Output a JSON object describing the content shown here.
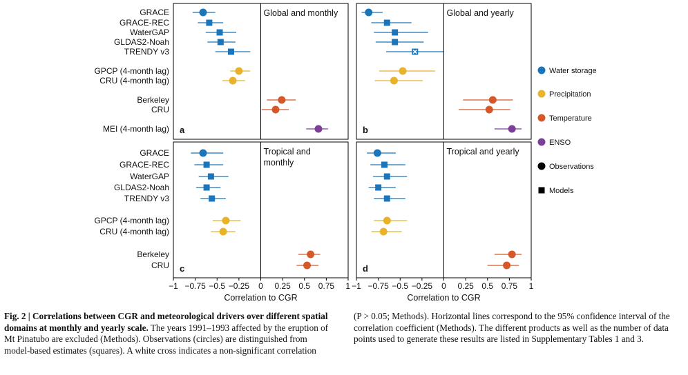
{
  "colors": {
    "water": "#1a75bb",
    "precip": "#e8b22a",
    "temp": "#d4582a",
    "enso": "#7b3f98"
  },
  "chart_data": [
    {
      "panel": "a",
      "type": "scatter",
      "title": [
        "Global and monthly"
      ],
      "xlabel": "Correlation to CGR",
      "xlim": [
        -1,
        1
      ],
      "ticks": [
        "−1",
        "−0.75",
        "−0.5",
        "−0.25",
        "0",
        "0.25",
        "0.5",
        "0.75",
        "1"
      ],
      "items": [
        {
          "label": "GRACE",
          "group": "water",
          "kind": "observation",
          "value": -0.66,
          "ci": [
            -0.78,
            -0.52
          ]
        },
        {
          "label": "GRACE-REC",
          "group": "water",
          "kind": "model",
          "value": -0.59,
          "ci": [
            -0.72,
            -0.43
          ]
        },
        {
          "label": "WaterGAP",
          "group": "water",
          "kind": "model",
          "value": -0.47,
          "ci": [
            -0.63,
            -0.28
          ]
        },
        {
          "label": "GLDAS2-Noah",
          "group": "water",
          "kind": "model",
          "value": -0.46,
          "ci": [
            -0.61,
            -0.29
          ]
        },
        {
          "label": "TRENDY v3",
          "group": "water",
          "kind": "model",
          "value": -0.34,
          "ci": [
            -0.52,
            -0.12
          ]
        },
        {
          "label": "GPCP (4-month lag)",
          "group": "precip",
          "kind": "observation",
          "value": -0.25,
          "ci": [
            -0.35,
            -0.12
          ]
        },
        {
          "label": "CRU (4-month lag)",
          "group": "precip",
          "kind": "observation",
          "value": -0.32,
          "ci": [
            -0.44,
            -0.18
          ]
        },
        {
          "label": "Berkeley",
          "group": "temp",
          "kind": "observation",
          "value": 0.24,
          "ci": [
            0.07,
            0.4
          ]
        },
        {
          "label": "CRU",
          "group": "temp",
          "kind": "observation",
          "value": 0.17,
          "ci": [
            0.01,
            0.32
          ]
        },
        {
          "label": "MEI (4-month lag)",
          "group": "enso",
          "kind": "observation",
          "value": 0.66,
          "ci": [
            0.52,
            0.77
          ]
        }
      ]
    },
    {
      "panel": "b",
      "type": "scatter",
      "title": [
        "Global and yearly"
      ],
      "xlabel": "Correlation to CGR",
      "xlim": [
        -1,
        1
      ],
      "ticks": [
        "−1",
        "−0.75",
        "−0.5",
        "−0.25",
        "0",
        "0.25",
        "0.5",
        "0.75",
        "1"
      ],
      "items": [
        {
          "label": "GRACE",
          "group": "water",
          "kind": "observation",
          "value": -0.86,
          "ci": [
            -0.94,
            -0.7
          ]
        },
        {
          "label": "GRACE-REC",
          "group": "water",
          "kind": "model",
          "value": -0.65,
          "ci": [
            -0.83,
            -0.37
          ]
        },
        {
          "label": "WaterGAP",
          "group": "water",
          "kind": "model",
          "value": -0.56,
          "ci": [
            -0.8,
            -0.18
          ]
        },
        {
          "label": "GLDAS2-Noah",
          "group": "water",
          "kind": "model",
          "value": -0.56,
          "ci": [
            -0.78,
            -0.23
          ]
        },
        {
          "label": "TRENDY v3",
          "group": "water",
          "kind": "model",
          "value": -0.33,
          "ci": [
            -0.66,
            0.0
          ],
          "non_significant": true
        },
        {
          "label": "GPCP (4-month lag)",
          "group": "precip",
          "kind": "observation",
          "value": -0.47,
          "ci": [
            -0.74,
            -0.1
          ]
        },
        {
          "label": "CRU (4-month lag)",
          "group": "precip",
          "kind": "observation",
          "value": -0.57,
          "ci": [
            -0.79,
            -0.24
          ]
        },
        {
          "label": "Berkeley",
          "group": "temp",
          "kind": "observation",
          "value": 0.56,
          "ci": [
            0.22,
            0.79
          ]
        },
        {
          "label": "CRU",
          "group": "temp",
          "kind": "observation",
          "value": 0.52,
          "ci": [
            0.17,
            0.76
          ]
        },
        {
          "label": "MEI (4-month lag)",
          "group": "enso",
          "kind": "observation",
          "value": 0.78,
          "ci": [
            0.58,
            0.89
          ]
        }
      ]
    },
    {
      "panel": "c",
      "type": "scatter",
      "title": [
        "Tropical and",
        "monthly"
      ],
      "xlabel": "Correlation to CGR",
      "xlim": [
        -1,
        1
      ],
      "ticks": [
        "−1",
        "−0.75",
        "−0.5",
        "−0.25",
        "0",
        "0.25",
        "0.5",
        "0.75",
        "1"
      ],
      "items": [
        {
          "label": "GRACE",
          "group": "water",
          "kind": "observation",
          "value": -0.66,
          "ci": [
            -0.8,
            -0.43
          ]
        },
        {
          "label": "GRACE-REC",
          "group": "water",
          "kind": "model",
          "value": -0.62,
          "ci": [
            -0.76,
            -0.43
          ]
        },
        {
          "label": "WaterGAP",
          "group": "water",
          "kind": "model",
          "value": -0.57,
          "ci": [
            -0.71,
            -0.37
          ]
        },
        {
          "label": "GLDAS2-Noah",
          "group": "water",
          "kind": "model",
          "value": -0.62,
          "ci": [
            -0.74,
            -0.46
          ]
        },
        {
          "label": "TRENDY v3",
          "group": "water",
          "kind": "model",
          "value": -0.56,
          "ci": [
            -0.69,
            -0.4
          ]
        },
        {
          "label": "GPCP (4-month lag)",
          "group": "precip",
          "kind": "observation",
          "value": -0.4,
          "ci": [
            -0.55,
            -0.23
          ]
        },
        {
          "label": "CRU (4-month lag)",
          "group": "precip",
          "kind": "observation",
          "value": -0.43,
          "ci": [
            -0.57,
            -0.29
          ]
        },
        {
          "label": "Berkeley",
          "group": "temp",
          "kind": "observation",
          "value": 0.57,
          "ci": [
            0.43,
            0.68
          ]
        },
        {
          "label": "CRU",
          "group": "temp",
          "kind": "observation",
          "value": 0.53,
          "ci": [
            0.41,
            0.66
          ]
        }
      ]
    },
    {
      "panel": "d",
      "type": "scatter",
      "title": [
        "Tropical and yearly"
      ],
      "xlabel": "Correlation to CGR",
      "xlim": [
        -1,
        1
      ],
      "ticks": [
        "−1",
        "−0.75",
        "−0.5",
        "−0.25",
        "0",
        "0.25",
        "0.5",
        "0.75",
        "1"
      ],
      "items": [
        {
          "label": "GRACE",
          "group": "water",
          "kind": "observation",
          "value": -0.76,
          "ci": [
            -0.88,
            -0.55
          ]
        },
        {
          "label": "GRACE-REC",
          "group": "water",
          "kind": "model",
          "value": -0.68,
          "ci": [
            -0.84,
            -0.44
          ]
        },
        {
          "label": "WaterGAP",
          "group": "water",
          "kind": "model",
          "value": -0.65,
          "ci": [
            -0.81,
            -0.42
          ]
        },
        {
          "label": "GLDAS2-Noah",
          "group": "water",
          "kind": "model",
          "value": -0.75,
          "ci": [
            -0.86,
            -0.55
          ]
        },
        {
          "label": "TRENDY v3",
          "group": "water",
          "kind": "model",
          "value": -0.65,
          "ci": [
            -0.8,
            -0.44
          ]
        },
        {
          "label": "GPCP (4-month lag)",
          "group": "precip",
          "kind": "observation",
          "value": -0.65,
          "ci": [
            -0.8,
            -0.42
          ]
        },
        {
          "label": "CRU (4-month lag)",
          "group": "precip",
          "kind": "observation",
          "value": -0.69,
          "ci": [
            -0.83,
            -0.48
          ]
        },
        {
          "label": "Berkeley",
          "group": "temp",
          "kind": "observation",
          "value": 0.78,
          "ci": [
            0.58,
            0.89
          ]
        },
        {
          "label": "CRU",
          "group": "temp",
          "kind": "observation",
          "value": 0.72,
          "ci": [
            0.5,
            0.86
          ]
        }
      ]
    }
  ],
  "legend": [
    {
      "label": "Water storage",
      "marker": "circle",
      "color": "#1a75bb"
    },
    {
      "label": "Precipitation",
      "marker": "circle",
      "color": "#e8b22a"
    },
    {
      "label": "Temperature",
      "marker": "circle",
      "color": "#d4582a"
    },
    {
      "label": "ENSO",
      "marker": "circle",
      "color": "#7b3f98"
    },
    {
      "label": "Observations",
      "marker": "circle",
      "color": "#000000"
    },
    {
      "label": "Models",
      "marker": "square",
      "color": "#000000"
    }
  ],
  "caption": {
    "fig_label": "Fig. 2 | Correlations between CGR and meteorological drivers over different spatial domains at monthly and yearly scale.",
    "left_text": " The years 1991–1993 affected by the eruption of Mt Pinatubo are excluded (Methods). Observations (circles) are distinguished from model-based estimates (squares). A white cross indicates a non-significant correlation",
    "right_text": "(P > 0.05; Methods). Horizontal lines correspond to the 95% confidence interval of the correlation coefficient (Methods). The different products as well as the number of data points used to generate these results are listed in Supplementary Tables 1 and 3."
  }
}
